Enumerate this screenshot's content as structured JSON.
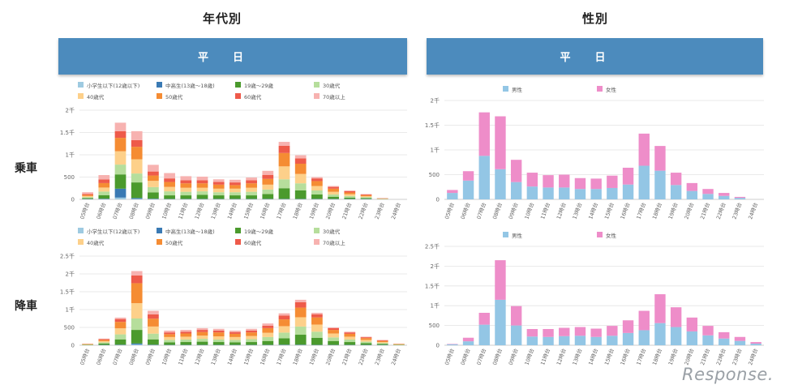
{
  "titles": {
    "age": "年代別",
    "gender": "性別"
  },
  "banners": {
    "age": "平日",
    "gender": "平日"
  },
  "rows": {
    "boarding": "乗車",
    "alighting": "降車"
  },
  "watermark": "Response.",
  "chart_data": [
    {
      "id": "age-boarding",
      "type": "bar",
      "stacked": true,
      "categories": [
        "05時台",
        "06時台",
        "07時台",
        "08時台",
        "09時台",
        "10時台",
        "11時台",
        "12時台",
        "13時台",
        "14時台",
        "15時台",
        "16時台",
        "17時台",
        "18時台",
        "19時台",
        "20時台",
        "21時台",
        "22時台",
        "23時台",
        "24時台"
      ],
      "y_ticks": [
        "0",
        "500",
        "1千",
        "1.5千",
        "2千"
      ],
      "ylim": [
        0,
        2000
      ],
      "legend": [
        "小学生以下(12歳以下)",
        "中高生(13歳～18歳)",
        "19歳～29歳",
        "30歳代",
        "40歳代",
        "50歳代",
        "60歳代",
        "70歳以上"
      ],
      "colors": [
        "#9ecae1",
        "#3a7ab4",
        "#4b9a2d",
        "#b6de9c",
        "#fdd08a",
        "#f58c33",
        "#ee5a4a",
        "#f7b2b0"
      ],
      "series": [
        {
          "name": "小学生以下(12歳以下)",
          "values": [
            5,
            5,
            40,
            10,
            5,
            5,
            5,
            5,
            5,
            5,
            5,
            5,
            5,
            5,
            5,
            5,
            5,
            5,
            0,
            0
          ]
        },
        {
          "name": "中高生(13歳～18歳)",
          "values": [
            5,
            10,
            200,
            20,
            10,
            5,
            5,
            5,
            5,
            5,
            5,
            5,
            5,
            5,
            5,
            5,
            5,
            5,
            0,
            0
          ]
        },
        {
          "name": "19歳～29歳",
          "values": [
            20,
            80,
            320,
            350,
            140,
            80,
            80,
            90,
            80,
            80,
            80,
            110,
            240,
            190,
            100,
            50,
            30,
            20,
            5,
            0
          ]
        },
        {
          "name": "30歳代",
          "values": [
            20,
            80,
            220,
            200,
            120,
            90,
            80,
            80,
            70,
            70,
            80,
            100,
            200,
            160,
            90,
            50,
            35,
            20,
            5,
            0
          ]
        },
        {
          "name": "40歳代",
          "values": [
            25,
            90,
            300,
            320,
            140,
            100,
            90,
            80,
            80,
            80,
            90,
            110,
            290,
            210,
            100,
            60,
            40,
            20,
            5,
            0
          ]
        },
        {
          "name": "50歳代",
          "values": [
            25,
            100,
            300,
            280,
            120,
            110,
            100,
            100,
            90,
            80,
            100,
            130,
            300,
            230,
            110,
            70,
            40,
            25,
            5,
            0
          ]
        },
        {
          "name": "60歳代",
          "values": [
            20,
            80,
            150,
            150,
            90,
            80,
            70,
            70,
            60,
            60,
            70,
            90,
            160,
            120,
            60,
            40,
            30,
            15,
            5,
            0
          ]
        },
        {
          "name": "70歳以上",
          "values": [
            40,
            100,
            190,
            200,
            150,
            120,
            90,
            80,
            60,
            60,
            60,
            90,
            90,
            70,
            30,
            20,
            15,
            10,
            5,
            0
          ]
        }
      ]
    },
    {
      "id": "age-alighting",
      "type": "bar",
      "stacked": true,
      "categories": [
        "05時台",
        "06時台",
        "07時台",
        "08時台",
        "09時台",
        "10時台",
        "11時台",
        "12時台",
        "13時台",
        "14時台",
        "15時台",
        "16時台",
        "17時台",
        "18時台",
        "19時台",
        "20時台",
        "21時台",
        "22時台",
        "23時台",
        "24時台"
      ],
      "y_ticks": [
        "0",
        "500",
        "1千",
        "1.5千",
        "2千",
        "2.5千"
      ],
      "ylim": [
        0,
        2500
      ],
      "legend": [
        "小学生以下(12歳以下)",
        "中高生(13歳～18歳)",
        "19歳～29歳",
        "30歳代",
        "40歳代",
        "50歳代",
        "60歳代",
        "70歳以上"
      ],
      "colors": [
        "#9ecae1",
        "#3a7ab4",
        "#4b9a2d",
        "#b6de9c",
        "#fdd08a",
        "#f58c33",
        "#ee5a4a",
        "#f7b2b0"
      ],
      "series": [
        {
          "name": "小学生以下(12歳以下)",
          "values": [
            0,
            5,
            5,
            20,
            5,
            5,
            5,
            5,
            5,
            5,
            5,
            5,
            5,
            5,
            5,
            5,
            5,
            5,
            5,
            0
          ]
        },
        {
          "name": "中高生(13歳～18歳)",
          "values": [
            0,
            5,
            10,
            30,
            10,
            5,
            5,
            5,
            5,
            5,
            5,
            5,
            10,
            10,
            5,
            5,
            5,
            5,
            5,
            0
          ]
        },
        {
          "name": "19歳～29歳",
          "values": [
            10,
            40,
            150,
            380,
            150,
            70,
            80,
            90,
            80,
            70,
            80,
            110,
            180,
            280,
            200,
            110,
            80,
            50,
            30,
            10
          ]
        },
        {
          "name": "30歳代",
          "values": [
            5,
            30,
            140,
            320,
            160,
            70,
            70,
            80,
            70,
            70,
            80,
            110,
            160,
            230,
            170,
            100,
            70,
            40,
            20,
            5
          ]
        },
        {
          "name": "40歳代",
          "values": [
            10,
            35,
            170,
            430,
            200,
            80,
            80,
            90,
            90,
            80,
            90,
            120,
            180,
            260,
            200,
            110,
            80,
            50,
            30,
            10
          ]
        },
        {
          "name": "50歳代",
          "values": [
            10,
            35,
            180,
            560,
            220,
            80,
            90,
            100,
            110,
            90,
            100,
            130,
            190,
            270,
            200,
            100,
            80,
            50,
            30,
            10
          ]
        },
        {
          "name": "60歳代",
          "values": [
            5,
            20,
            80,
            220,
            120,
            50,
            50,
            60,
            50,
            50,
            50,
            70,
            110,
            150,
            90,
            50,
            40,
            25,
            20,
            5
          ]
        },
        {
          "name": "70歳以上",
          "values": [
            5,
            15,
            40,
            120,
            100,
            50,
            50,
            50,
            50,
            40,
            50,
            60,
            60,
            70,
            40,
            20,
            20,
            15,
            10,
            5
          ]
        }
      ]
    },
    {
      "id": "gender-boarding",
      "type": "bar",
      "stacked": true,
      "categories": [
        "05時台",
        "06時台",
        "07時台",
        "08時台",
        "09時台",
        "10時台",
        "11時台",
        "12時台",
        "13時台",
        "14時台",
        "15時台",
        "16時台",
        "17時台",
        "18時台",
        "19時台",
        "20時台",
        "21時台",
        "22時台",
        "23時台",
        "24時台"
      ],
      "y_ticks": [
        "0",
        "500",
        "1千",
        "1.5千",
        "2千"
      ],
      "ylim": [
        0,
        2000
      ],
      "legend": [
        "男性",
        "女性"
      ],
      "colors": [
        "#93c6e5",
        "#ee8dc9"
      ],
      "series": [
        {
          "name": "男性",
          "values": [
            130,
            380,
            880,
            610,
            350,
            260,
            240,
            240,
            210,
            210,
            230,
            300,
            680,
            580,
            290,
            170,
            110,
            70,
            30,
            0
          ]
        },
        {
          "name": "女性",
          "values": [
            60,
            190,
            880,
            1070,
            450,
            280,
            250,
            260,
            220,
            210,
            250,
            340,
            650,
            500,
            250,
            160,
            100,
            60,
            20,
            0
          ]
        }
      ]
    },
    {
      "id": "gender-alighting",
      "type": "bar",
      "stacked": true,
      "categories": [
        "05時台",
        "06時台",
        "07時台",
        "08時台",
        "09時台",
        "10時台",
        "11時台",
        "12時台",
        "13時台",
        "14時台",
        "15時台",
        "16時台",
        "17時台",
        "18時台",
        "19時台",
        "20時台",
        "21時台",
        "22時台",
        "23時台",
        "24時台"
      ],
      "y_ticks": [
        "0",
        "500",
        "1千",
        "1.5千",
        "2千",
        "2.5千"
      ],
      "ylim": [
        0,
        2500
      ],
      "legend": [
        "男性",
        "女性"
      ],
      "colors": [
        "#93c6e5",
        "#ee8dc9"
      ],
      "series": [
        {
          "name": "男性",
          "values": [
            25,
            100,
            520,
            1150,
            500,
            220,
            210,
            230,
            240,
            210,
            240,
            310,
            380,
            560,
            460,
            350,
            250,
            170,
            110,
            40
          ]
        },
        {
          "name": "女性",
          "values": [
            10,
            90,
            300,
            1000,
            490,
            190,
            200,
            210,
            220,
            210,
            250,
            320,
            490,
            730,
            500,
            350,
            240,
            160,
            100,
            40
          ]
        }
      ]
    }
  ]
}
